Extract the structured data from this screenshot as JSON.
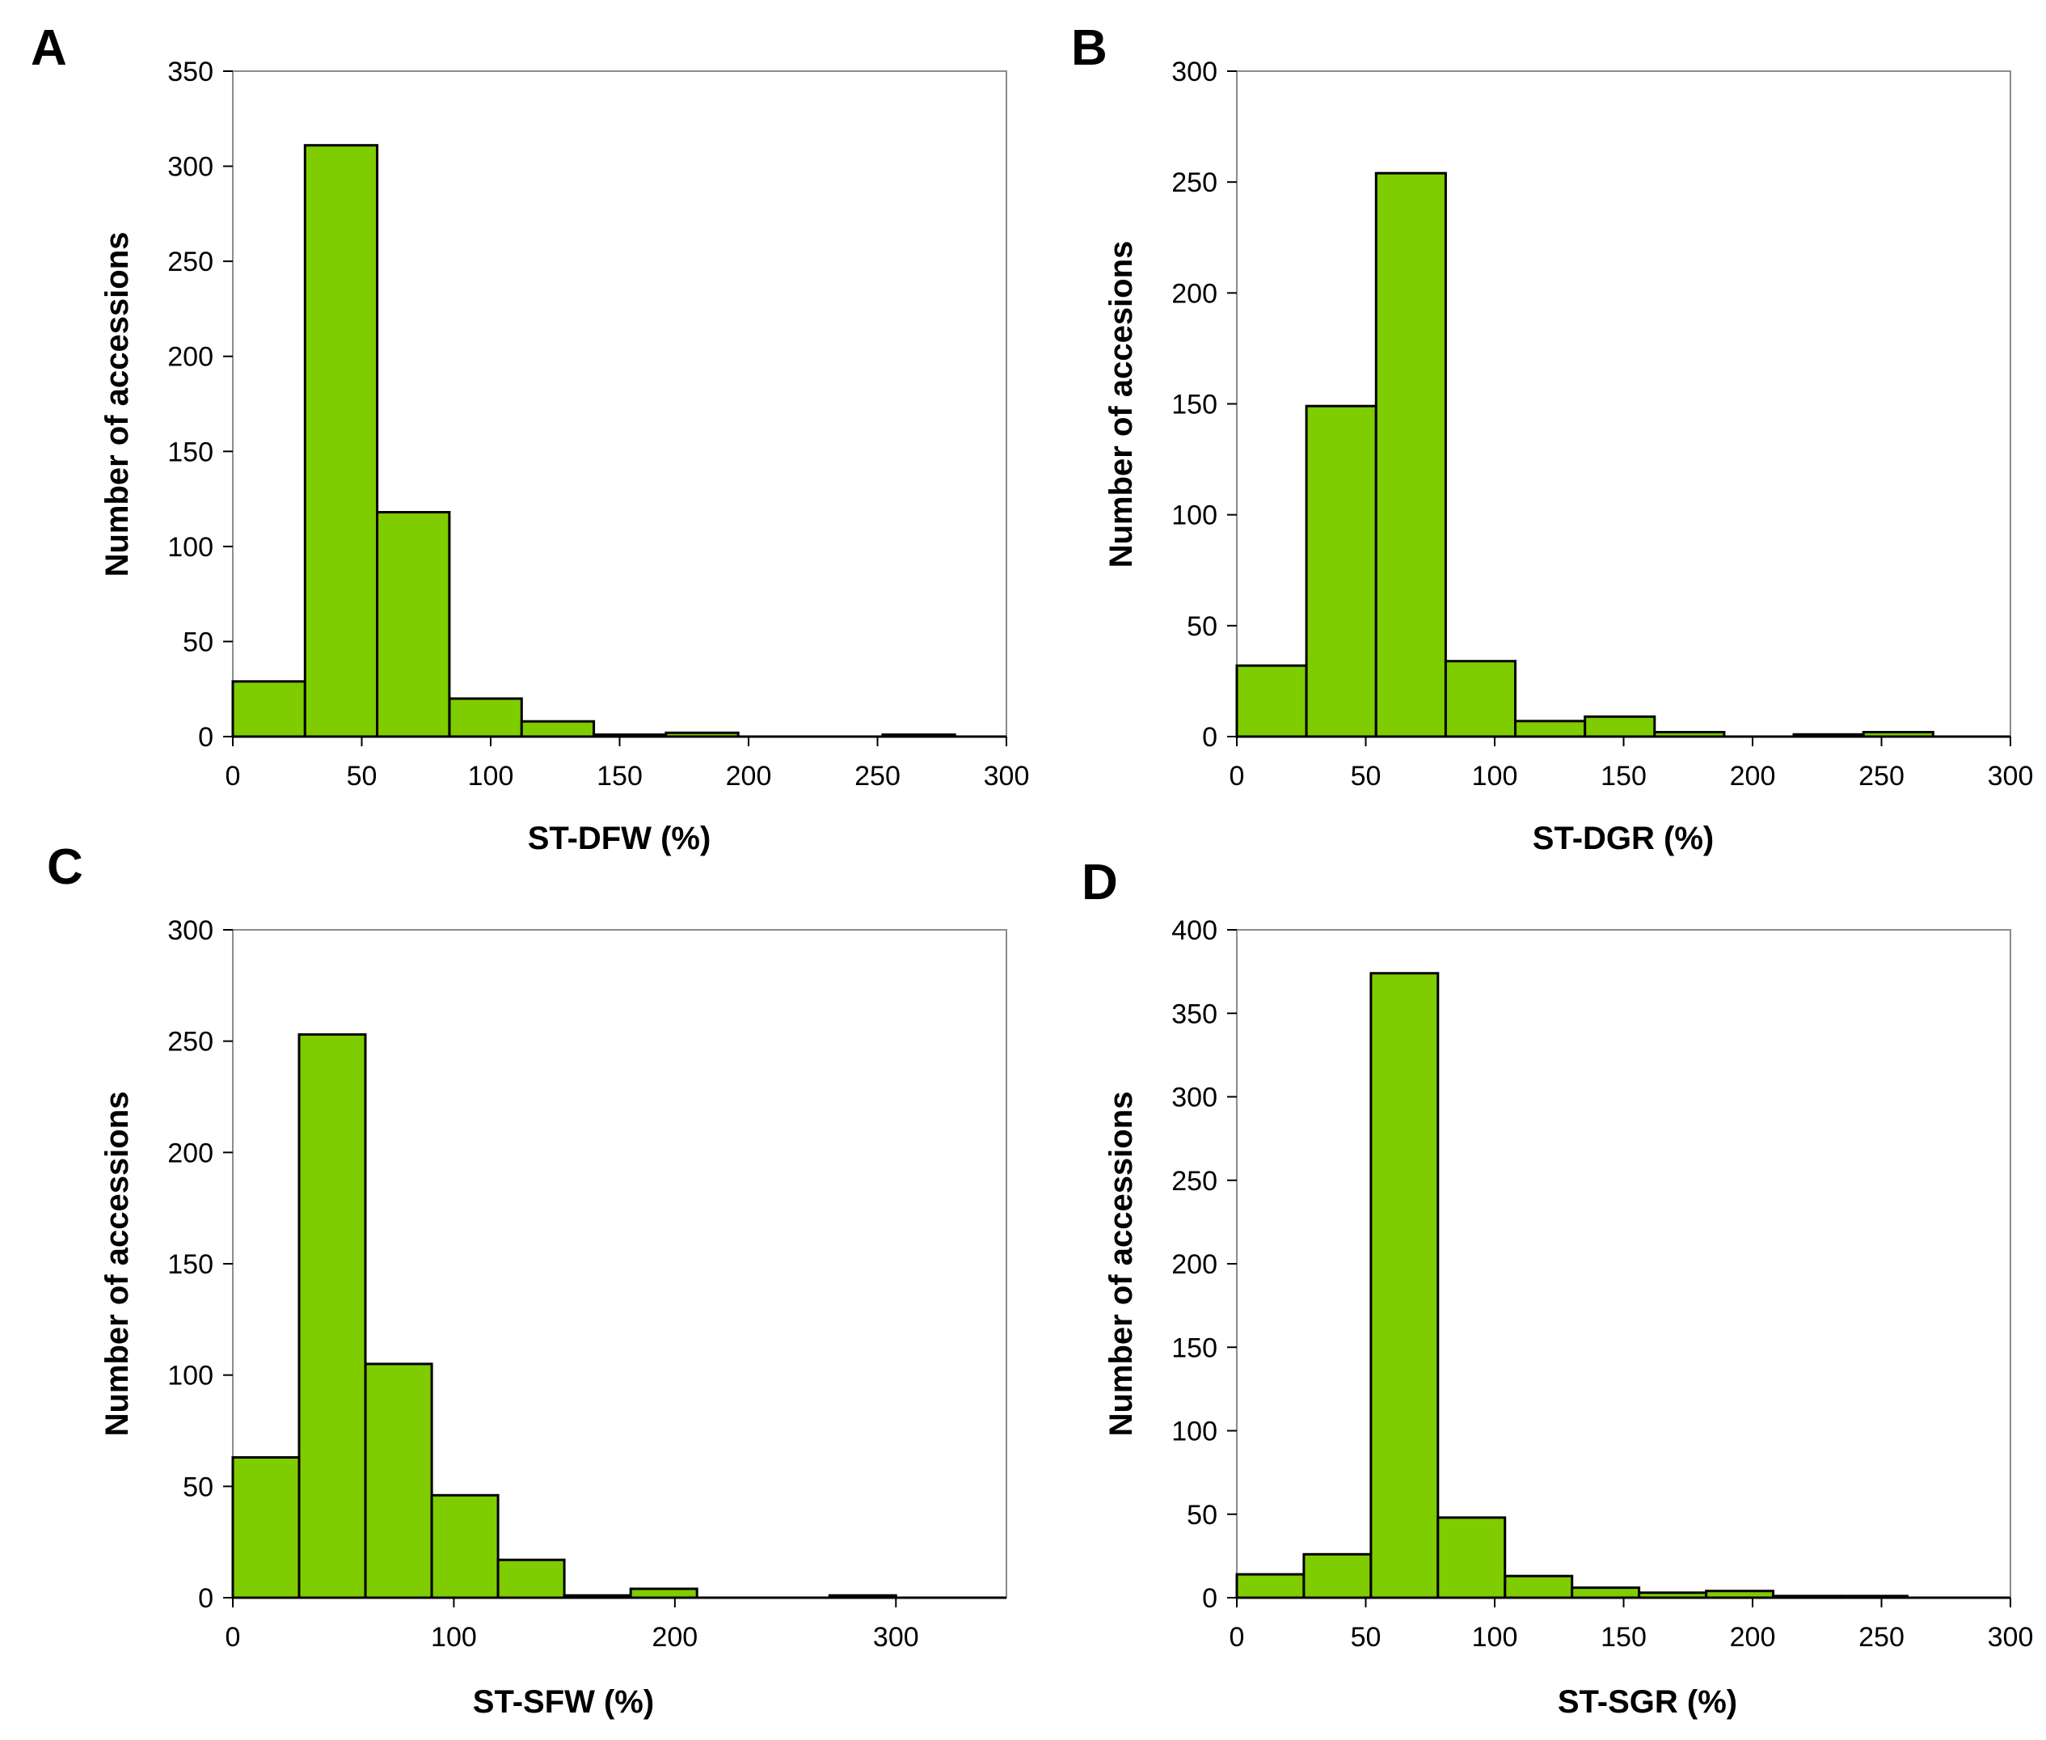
{
  "figure": {
    "bar_color": "#7fcc00",
    "axis_color": "#000000",
    "frame_color": "#8c8c8c"
  },
  "chart_data": [
    {
      "panel": "A",
      "type": "bar",
      "xlabel": "ST-DFW (%)",
      "ylabel": "Number of accessions",
      "xlim": [
        0,
        300
      ],
      "ylim": [
        0,
        350
      ],
      "xticks": [
        0,
        50,
        100,
        150,
        200,
        250,
        300
      ],
      "yticks": [
        0,
        50,
        100,
        150,
        200,
        250,
        300,
        350
      ],
      "bin_width": 28,
      "bin_starts": [
        0,
        28,
        56,
        84,
        112,
        140,
        168,
        196,
        224,
        252,
        280
      ],
      "values": [
        29,
        311,
        118,
        20,
        8,
        1,
        2,
        0,
        0,
        1,
        0
      ]
    },
    {
      "panel": "B",
      "type": "bar",
      "xlabel": "ST-DGR (%)",
      "ylabel": "Number of accesions",
      "xlim": [
        0,
        300
      ],
      "ylim": [
        0,
        300
      ],
      "xticks": [
        0,
        50,
        100,
        150,
        200,
        250,
        300
      ],
      "yticks": [
        0,
        50,
        100,
        150,
        200,
        250,
        300
      ],
      "bin_width": 27,
      "bin_starts": [
        0,
        27,
        54,
        81,
        108,
        135,
        162,
        189,
        216,
        243,
        270
      ],
      "values": [
        32,
        149,
        254,
        34,
        7,
        9,
        2,
        0,
        1,
        2,
        0
      ]
    },
    {
      "panel": "C",
      "type": "bar",
      "xlabel": "ST-SFW (%)",
      "ylabel": "Number of accessions",
      "xlim": [
        0,
        350
      ],
      "ylim": [
        0,
        300
      ],
      "xticks": [
        0,
        100,
        200,
        300
      ],
      "yticks": [
        0,
        50,
        100,
        150,
        200,
        250,
        300
      ],
      "bin_width": 30,
      "bin_starts": [
        0,
        30,
        60,
        90,
        120,
        150,
        180,
        210,
        240,
        270,
        300
      ],
      "values": [
        63,
        253,
        105,
        46,
        17,
        1,
        4,
        0,
        0,
        1,
        0
      ]
    },
    {
      "panel": "D",
      "type": "bar",
      "xlabel": "ST-SGR (%)",
      "ylabel": "Number of accessions",
      "xlim": [
        0,
        300
      ],
      "ylim": [
        0,
        400
      ],
      "xticks": [
        0,
        50,
        100,
        150,
        200,
        250,
        300
      ],
      "yticks": [
        0,
        50,
        100,
        150,
        200,
        250,
        300,
        350,
        400
      ],
      "bin_width": 26,
      "bin_starts": [
        0,
        26,
        52,
        78,
        104,
        130,
        156,
        182,
        208,
        234,
        260
      ],
      "values": [
        14,
        26,
        374,
        48,
        13,
        6,
        3,
        4,
        1,
        1,
        0
      ]
    }
  ]
}
